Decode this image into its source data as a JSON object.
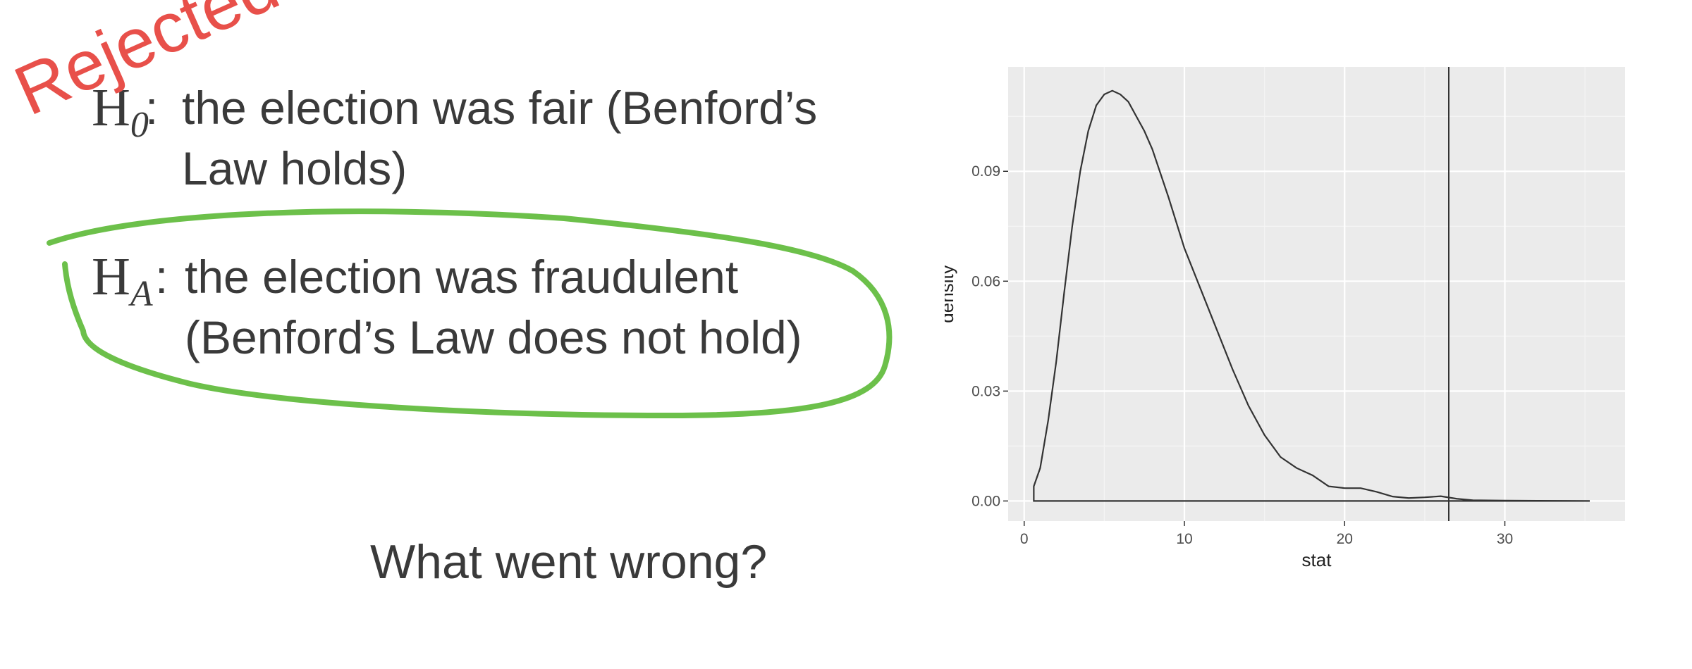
{
  "slide": {
    "h0": {
      "symbol": "H",
      "subscript": "0",
      "colon": ":",
      "line1": "the election was fair (Benford’s",
      "line2": "Law holds)"
    },
    "ha": {
      "symbol": "H",
      "subscript": "A",
      "colon": ":",
      "line1": "the election was fraudulent",
      "line2": "(Benford’s Law does not hold)"
    },
    "question": "What went wrong?",
    "stamp": "Rejected",
    "colors": {
      "text": "#3a3a3a",
      "stamp": "#e8504a",
      "circle": "#6cc04a"
    }
  },
  "chart_data": {
    "type": "line",
    "xlabel": "stat",
    "ylabel": "density",
    "xlim": [
      -1,
      37.5
    ],
    "ylim": [
      -0.0055,
      0.1185
    ],
    "x_ticks": [
      0,
      10,
      20,
      30
    ],
    "x_tick_labels": [
      "0",
      "10",
      "20",
      "30"
    ],
    "y_ticks": [
      0.0,
      0.03,
      0.06,
      0.09
    ],
    "y_tick_labels": [
      "0.00",
      "0.03",
      "0.06",
      "0.09"
    ],
    "grid": true,
    "reference_line_x": 26.5,
    "series": [
      {
        "x": [
          0.6,
          1.0,
          1.5,
          2.0,
          2.5,
          3.0,
          3.5,
          4.0,
          4.5,
          5.0,
          5.5,
          6.0,
          6.5,
          7.0,
          7.5,
          8.0,
          9.0,
          10.0,
          11.0,
          12.0,
          13.0,
          14.0,
          15.0,
          16.0,
          17.0,
          18.0,
          19.0,
          20.0,
          21.0,
          22.0,
          23.0,
          24.0,
          25.0,
          26.0,
          27.0,
          28.0,
          30.0,
          32.0,
          34.0,
          35.3
        ],
        "y": [
          0.004,
          0.009,
          0.022,
          0.038,
          0.057,
          0.075,
          0.09,
          0.101,
          0.108,
          0.111,
          0.112,
          0.111,
          0.109,
          0.105,
          0.101,
          0.096,
          0.083,
          0.069,
          0.058,
          0.047,
          0.036,
          0.026,
          0.018,
          0.012,
          0.009,
          0.007,
          0.004,
          0.0035,
          0.0035,
          0.0025,
          0.0012,
          0.0008,
          0.001,
          0.0013,
          0.0006,
          0.0002,
          0.0001,
          5e-05,
          3e-05,
          0.0
        ]
      }
    ]
  }
}
